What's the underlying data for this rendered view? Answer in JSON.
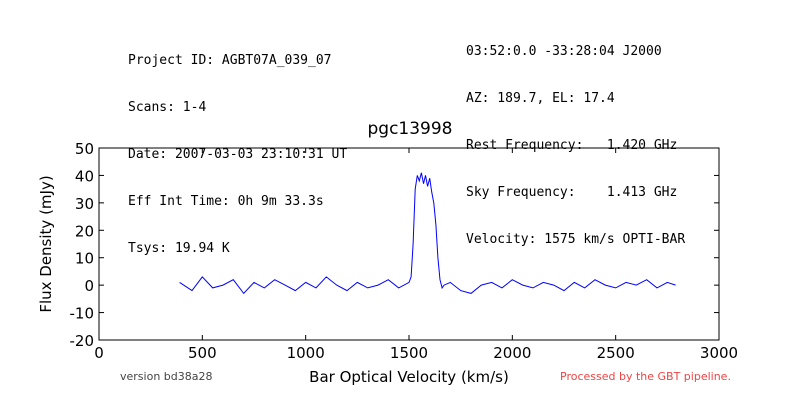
{
  "header": {
    "left_lines": [
      "Project ID: AGBT07A_039_07",
      "Scans: 1-4",
      "Date: 2007-03-03 23:10:31 UT",
      "Eff Int Time: 0h 9m 33.3s",
      "Tsys: 19.94 K"
    ],
    "right_lines": [
      "03:52:0.0 -33:28:04 J2000",
      "AZ: 189.7, EL: 17.4",
      "Rest Frequency:   1.420 GHz",
      "Sky Frequency:    1.413 GHz",
      "Velocity: 1575 km/s OPTI-BAR"
    ]
  },
  "footer": {
    "version": "version bd38a28",
    "processed": "Processed by the GBT pipeline.",
    "processed_color": "#ee4444"
  },
  "chart_data": {
    "type": "line",
    "title": "pgc13998",
    "xlabel": "Bar Optical Velocity (km/s)",
    "ylabel": "Flux Density (mJy)",
    "xlim": [
      0,
      3000
    ],
    "ylim": [
      -20,
      50
    ],
    "xticks": [
      0,
      500,
      1000,
      1500,
      2000,
      2500,
      3000
    ],
    "yticks": [
      -20,
      -10,
      0,
      10,
      20,
      30,
      40,
      50
    ],
    "grid": false,
    "line_color": "#0000ff",
    "series": [
      {
        "x": [
          390,
          450,
          500,
          550,
          600,
          650,
          700,
          750,
          800,
          850,
          900,
          950,
          1000,
          1050,
          1100,
          1150,
          1200,
          1250,
          1300,
          1350,
          1400,
          1450,
          1500,
          1510,
          1520,
          1530,
          1540,
          1550,
          1560,
          1570,
          1580,
          1590,
          1600,
          1610,
          1620,
          1630,
          1640,
          1650,
          1660,
          1670,
          1700,
          1750,
          1800,
          1850,
          1900,
          1950,
          2000,
          2050,
          2100,
          2150,
          2200,
          2250,
          2300,
          2350,
          2400,
          2450,
          2500,
          2550,
          2600,
          2650,
          2700,
          2750,
          2790
        ],
        "y": [
          1,
          -2,
          3,
          -1,
          0,
          2,
          -3,
          1,
          -1,
          2,
          0,
          -2,
          1,
          -1,
          3,
          0,
          -2,
          1,
          -1,
          0,
          2,
          -1,
          1,
          3,
          15,
          35,
          40,
          38,
          41,
          37,
          40,
          36,
          39,
          34,
          30,
          22,
          10,
          2,
          -1,
          0,
          1,
          -2,
          -3,
          0,
          1,
          -1,
          2,
          0,
          -1,
          1,
          0,
          -2,
          1,
          -1,
          2,
          0,
          -1,
          1,
          0,
          2,
          -1,
          1,
          0
        ]
      }
    ]
  }
}
